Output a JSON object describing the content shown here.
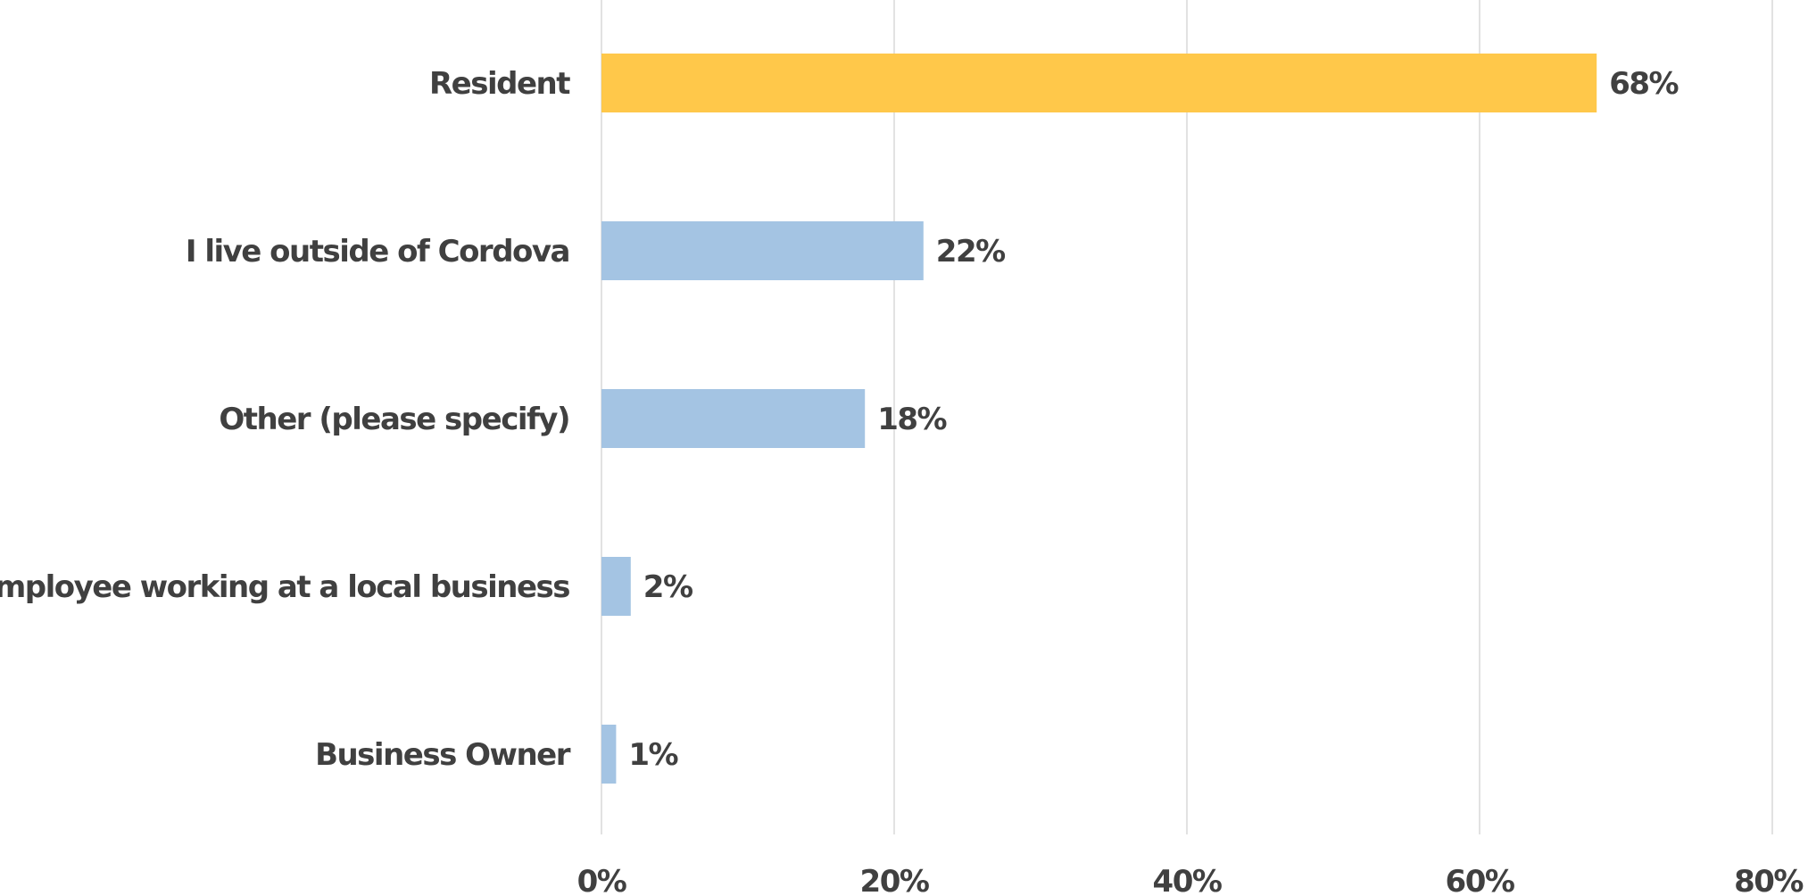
{
  "chart_data": {
    "type": "bar",
    "orientation": "horizontal",
    "categories": [
      "Resident",
      "I live outside of Cordova",
      "Other (please specify)",
      "Employee working at a local business",
      "Business Owner"
    ],
    "values": [
      68,
      22,
      18,
      2,
      1
    ],
    "data_labels": [
      "68%",
      "22%",
      "18%",
      "2%",
      "1%"
    ],
    "title": "",
    "xlabel": "",
    "ylabel": "",
    "xlim": [
      0,
      80
    ],
    "x_ticks": [
      0,
      20,
      40,
      60,
      80
    ],
    "x_tick_labels": [
      "0%",
      "20%",
      "40%",
      "60%",
      "80%"
    ],
    "grid": "vertical",
    "legend": "none",
    "colors": {
      "highlight": "#FFC84A",
      "default": "#A4C4E3",
      "text": "#404040",
      "grid": "#D9D9D9"
    },
    "highlight_index": 0
  }
}
